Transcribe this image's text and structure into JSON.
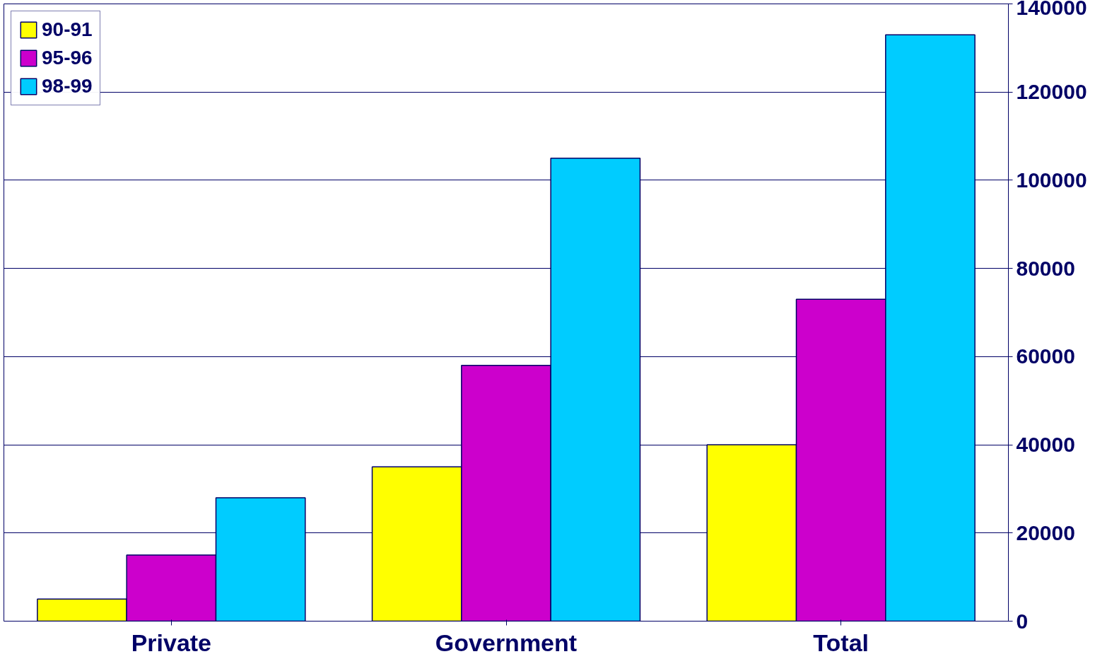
{
  "chart_data": {
    "type": "bar",
    "categories": [
      "Private",
      "Government",
      "Total"
    ],
    "series": [
      {
        "name": "90-91",
        "color": "#ffff00",
        "values": [
          5000,
          35000,
          40000
        ]
      },
      {
        "name": "95-96",
        "color": "#cc00cc",
        "values": [
          15000,
          58000,
          73000
        ]
      },
      {
        "name": "98-99",
        "color": "#00ccff",
        "values": [
          28000,
          105000,
          133000
        ]
      }
    ],
    "ylim": [
      0,
      140000
    ],
    "yticks": [
      0,
      20000,
      40000,
      60000,
      80000,
      100000,
      120000,
      140000
    ],
    "grid": "y",
    "legend": "top left"
  }
}
